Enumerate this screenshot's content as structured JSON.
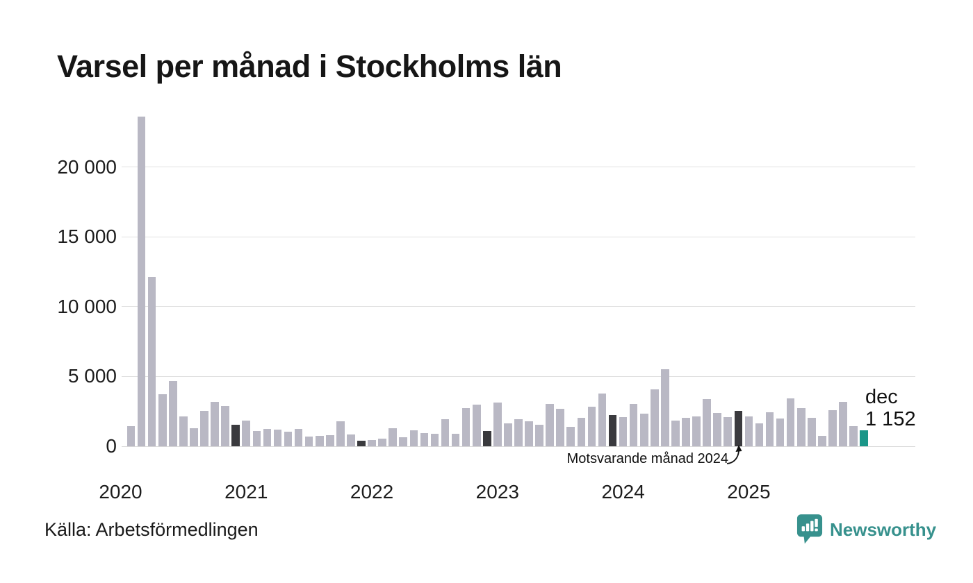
{
  "header": {
    "title": "Varsel per månad i Stockholms län"
  },
  "chart_data": {
    "type": "bar",
    "title": "Varsel per månad i Stockholms län",
    "xlabel": "",
    "ylabel": "",
    "ylim": [
      0,
      24000
    ],
    "grid": "horizontal",
    "y_ticks": [
      {
        "value": 0,
        "label": "0"
      },
      {
        "value": 5000,
        "label": "5 000"
      },
      {
        "value": 10000,
        "label": "10 000"
      },
      {
        "value": 15000,
        "label": "15 000"
      },
      {
        "value": 20000,
        "label": "20 000"
      }
    ],
    "year_labels": [
      "2020",
      "2021",
      "2022",
      "2023",
      "2024",
      "2025"
    ],
    "colors": {
      "normal": "#b9b8c4",
      "december": "#3a3a3e",
      "current": "#1a9688"
    },
    "months": [
      {
        "month": "2020-02",
        "value": 1430,
        "role": "normal"
      },
      {
        "month": "2020-03",
        "value": 23600,
        "role": "normal"
      },
      {
        "month": "2020-04",
        "value": 12150,
        "role": "normal"
      },
      {
        "month": "2020-05",
        "value": 3730,
        "role": "normal"
      },
      {
        "month": "2020-06",
        "value": 4650,
        "role": "normal"
      },
      {
        "month": "2020-07",
        "value": 2120,
        "role": "normal"
      },
      {
        "month": "2020-08",
        "value": 1270,
        "role": "normal"
      },
      {
        "month": "2020-09",
        "value": 2540,
        "role": "normal"
      },
      {
        "month": "2020-10",
        "value": 3190,
        "role": "normal"
      },
      {
        "month": "2020-11",
        "value": 2860,
        "role": "normal"
      },
      {
        "month": "2020-12",
        "value": 1540,
        "role": "december"
      },
      {
        "month": "2021-01",
        "value": 1820,
        "role": "normal"
      },
      {
        "month": "2021-02",
        "value": 1090,
        "role": "normal"
      },
      {
        "month": "2021-03",
        "value": 1250,
        "role": "normal"
      },
      {
        "month": "2021-04",
        "value": 1180,
        "role": "normal"
      },
      {
        "month": "2021-05",
        "value": 1020,
        "role": "normal"
      },
      {
        "month": "2021-06",
        "value": 1240,
        "role": "normal"
      },
      {
        "month": "2021-07",
        "value": 700,
        "role": "normal"
      },
      {
        "month": "2021-08",
        "value": 730,
        "role": "normal"
      },
      {
        "month": "2021-09",
        "value": 800,
        "role": "normal"
      },
      {
        "month": "2021-10",
        "value": 1800,
        "role": "normal"
      },
      {
        "month": "2021-11",
        "value": 830,
        "role": "normal"
      },
      {
        "month": "2021-12",
        "value": 390,
        "role": "december"
      },
      {
        "month": "2022-01",
        "value": 440,
        "role": "normal"
      },
      {
        "month": "2022-02",
        "value": 540,
        "role": "normal"
      },
      {
        "month": "2022-03",
        "value": 1310,
        "role": "normal"
      },
      {
        "month": "2022-04",
        "value": 650,
        "role": "normal"
      },
      {
        "month": "2022-05",
        "value": 1130,
        "role": "normal"
      },
      {
        "month": "2022-06",
        "value": 940,
        "role": "normal"
      },
      {
        "month": "2022-07",
        "value": 880,
        "role": "normal"
      },
      {
        "month": "2022-08",
        "value": 1950,
        "role": "normal"
      },
      {
        "month": "2022-09",
        "value": 880,
        "role": "normal"
      },
      {
        "month": "2022-10",
        "value": 2720,
        "role": "normal"
      },
      {
        "month": "2022-11",
        "value": 3000,
        "role": "normal"
      },
      {
        "month": "2022-12",
        "value": 1070,
        "role": "december"
      },
      {
        "month": "2023-01",
        "value": 3120,
        "role": "normal"
      },
      {
        "month": "2023-02",
        "value": 1640,
        "role": "normal"
      },
      {
        "month": "2023-03",
        "value": 1930,
        "role": "normal"
      },
      {
        "month": "2023-04",
        "value": 1790,
        "role": "normal"
      },
      {
        "month": "2023-05",
        "value": 1530,
        "role": "normal"
      },
      {
        "month": "2023-06",
        "value": 3040,
        "role": "normal"
      },
      {
        "month": "2023-07",
        "value": 2680,
        "role": "normal"
      },
      {
        "month": "2023-08",
        "value": 1410,
        "role": "normal"
      },
      {
        "month": "2023-09",
        "value": 2050,
        "role": "normal"
      },
      {
        "month": "2023-10",
        "value": 2840,
        "role": "normal"
      },
      {
        "month": "2023-11",
        "value": 3770,
        "role": "normal"
      },
      {
        "month": "2023-12",
        "value": 2260,
        "role": "december"
      },
      {
        "month": "2024-01",
        "value": 2100,
        "role": "normal"
      },
      {
        "month": "2024-02",
        "value": 3010,
        "role": "normal"
      },
      {
        "month": "2024-03",
        "value": 2330,
        "role": "normal"
      },
      {
        "month": "2024-04",
        "value": 4060,
        "role": "normal"
      },
      {
        "month": "2024-05",
        "value": 5530,
        "role": "normal"
      },
      {
        "month": "2024-06",
        "value": 1820,
        "role": "normal"
      },
      {
        "month": "2024-07",
        "value": 2050,
        "role": "normal"
      },
      {
        "month": "2024-08",
        "value": 2140,
        "role": "normal"
      },
      {
        "month": "2024-09",
        "value": 3380,
        "role": "normal"
      },
      {
        "month": "2024-10",
        "value": 2390,
        "role": "normal"
      },
      {
        "month": "2024-11",
        "value": 2070,
        "role": "normal"
      },
      {
        "month": "2024-12",
        "value": 2530,
        "role": "december"
      },
      {
        "month": "2025-01",
        "value": 2120,
        "role": "normal"
      },
      {
        "month": "2025-02",
        "value": 1640,
        "role": "normal"
      },
      {
        "month": "2025-03",
        "value": 2440,
        "role": "normal"
      },
      {
        "month": "2025-04",
        "value": 2000,
        "role": "normal"
      },
      {
        "month": "2025-05",
        "value": 3440,
        "role": "normal"
      },
      {
        "month": "2025-06",
        "value": 2740,
        "role": "normal"
      },
      {
        "month": "2025-07",
        "value": 2030,
        "role": "normal"
      },
      {
        "month": "2025-08",
        "value": 770,
        "role": "normal"
      },
      {
        "month": "2025-09",
        "value": 2570,
        "role": "normal"
      },
      {
        "month": "2025-10",
        "value": 3180,
        "role": "normal"
      },
      {
        "month": "2025-11",
        "value": 1460,
        "role": "normal"
      },
      {
        "month": "2025-12",
        "value": 1152,
        "role": "current"
      }
    ],
    "last_point": {
      "month_label": "dec",
      "value_label": "1 152"
    },
    "annotation": {
      "text": "Motsvarande månad 2024",
      "target_month": "2024-12"
    }
  },
  "footer": {
    "source": "Källa: Arbetsförmedlingen",
    "brand": {
      "name": "Newsworthy",
      "color": "#37918d"
    }
  }
}
